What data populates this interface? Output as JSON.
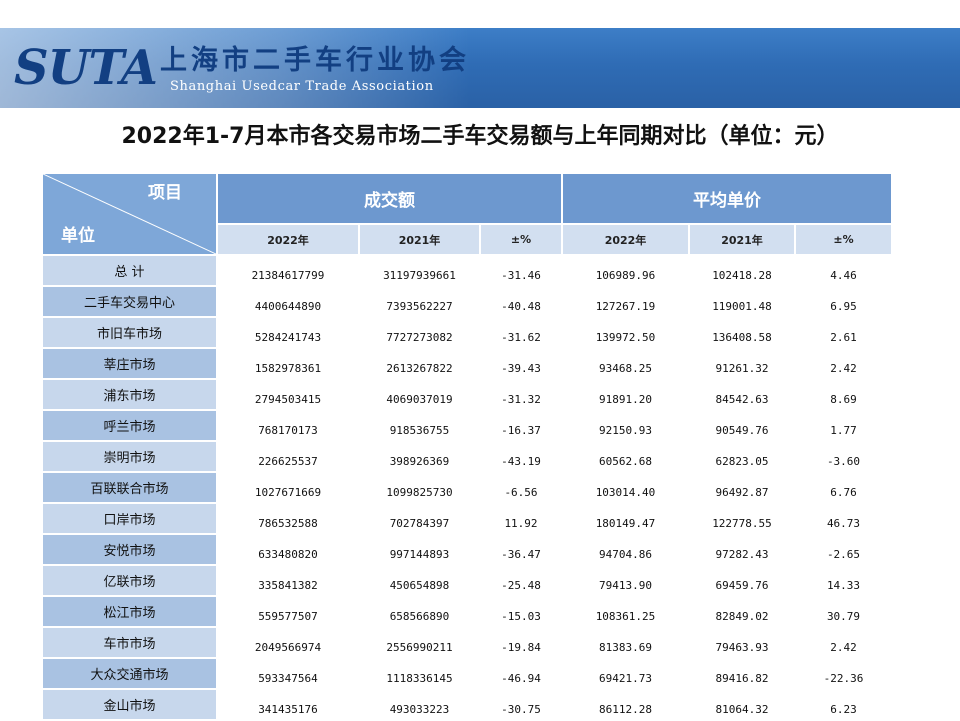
{
  "header": {
    "logo_text": "SUTA",
    "org_name_cn": "上海市二手车行业协会",
    "org_name_en": "Shanghai Usedcar Trade Association"
  },
  "title": "2022年1-7月本市各交易市场二手车交易额与上年同期对比（单位：元）",
  "table": {
    "corner_top": "项目",
    "corner_bottom": "单位",
    "groups": [
      "成交额",
      "平均单价"
    ],
    "subheaders": [
      "2022年",
      "2021年",
      "±%",
      "2022年",
      "2021年",
      "±%"
    ],
    "rows": [
      {
        "label": "总 计",
        "values": [
          "21384617799",
          "31197939661",
          "-31.46",
          "106989.96",
          "102418.28",
          "4.46"
        ]
      },
      {
        "label": "二手车交易中心",
        "values": [
          "4400644890",
          "7393562227",
          "-40.48",
          "127267.19",
          "119001.48",
          "6.95"
        ]
      },
      {
        "label": "市旧车市场",
        "values": [
          "5284241743",
          "7727273082",
          "-31.62",
          "139972.50",
          "136408.58",
          "2.61"
        ]
      },
      {
        "label": "莘庄市场",
        "values": [
          "1582978361",
          "2613267822",
          "-39.43",
          "93468.25",
          "91261.32",
          "2.42"
        ]
      },
      {
        "label": "浦东市场",
        "values": [
          "2794503415",
          "4069037019",
          "-31.32",
          "91891.20",
          "84542.63",
          "8.69"
        ]
      },
      {
        "label": "呼兰市场",
        "values": [
          "768170173",
          "918536755",
          "-16.37",
          "92150.93",
          "90549.76",
          "1.77"
        ]
      },
      {
        "label": "崇明市场",
        "values": [
          "226625537",
          "398926369",
          "-43.19",
          "60562.68",
          "62823.05",
          "-3.60"
        ]
      },
      {
        "label": "百联联合市场",
        "values": [
          "1027671669",
          "1099825730",
          "-6.56",
          "103014.40",
          "96492.87",
          "6.76"
        ]
      },
      {
        "label": "口岸市场",
        "values": [
          "786532588",
          "702784397",
          "11.92",
          "180149.47",
          "122778.55",
          "46.73"
        ]
      },
      {
        "label": "安悦市场",
        "values": [
          "633480820",
          "997144893",
          "-36.47",
          "94704.86",
          "97282.43",
          "-2.65"
        ]
      },
      {
        "label": "亿联市场",
        "values": [
          "335841382",
          "450654898",
          "-25.48",
          "79413.90",
          "69459.76",
          "14.33"
        ]
      },
      {
        "label": "松江市场",
        "values": [
          "559577507",
          "658566890",
          "-15.03",
          "108361.25",
          "82849.02",
          "30.79"
        ]
      },
      {
        "label": "车市市场",
        "values": [
          "2049566974",
          "2556990211",
          "-19.84",
          "81383.69",
          "79463.93",
          "2.42"
        ]
      },
      {
        "label": "大众交通市场",
        "values": [
          "593347564",
          "1118336145",
          "-46.94",
          "69421.73",
          "89416.82",
          "-22.36"
        ]
      },
      {
        "label": "金山市场",
        "values": [
          "341435176",
          "493033223",
          "-30.75",
          "86112.28",
          "81064.32",
          "6.23"
        ]
      }
    ]
  }
}
